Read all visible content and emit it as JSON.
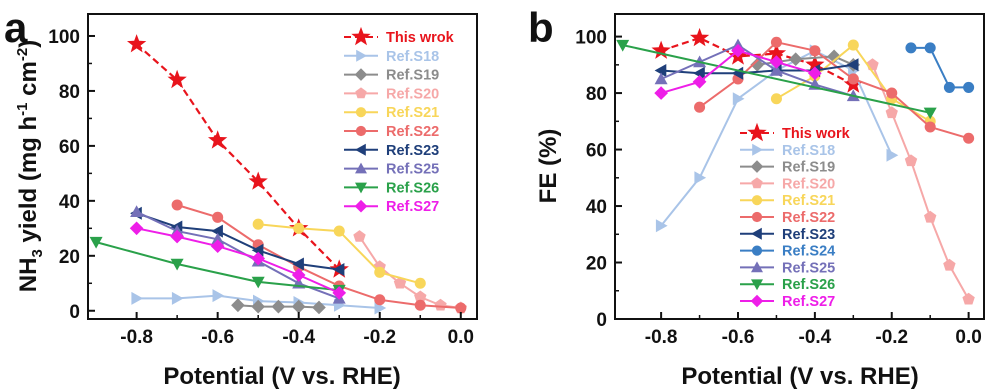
{
  "figure": {
    "panels": [
      "a",
      "b"
    ]
  },
  "chart_data": [
    {
      "panel": "a",
      "type": "line",
      "xlabel": "Potential (V vs. RHE)",
      "ylabel": "NH3 yield (mg h-1 cm-2)",
      "ylabel_parts": {
        "pre": "NH",
        "sub1": "3",
        "mid": " yield (mg h",
        "sup1": "-1",
        "mid2": " cm",
        "sup2": "-2",
        "post": ")"
      },
      "xlim": [
        -0.92,
        0.04
      ],
      "ylim": [
        -3,
        108
      ],
      "xticks": [
        -0.8,
        -0.6,
        -0.4,
        -0.2,
        0.0
      ],
      "xtick_labels": [
        "-0.8",
        "-0.6",
        "-0.4",
        "-0.2",
        "0.0"
      ],
      "yticks": [
        0,
        20,
        40,
        60,
        80,
        100
      ],
      "ytick_labels": [
        "0",
        "20",
        "40",
        "60",
        "80",
        "100"
      ],
      "legend": "top-right",
      "series": [
        {
          "name": "This wrok",
          "color": "#e8141c",
          "marker": "star",
          "dashed": true,
          "points": [
            [
              -0.8,
              97
            ],
            [
              -0.7,
              84
            ],
            [
              -0.6,
              62
            ],
            [
              -0.5,
              47
            ],
            [
              -0.4,
              30
            ],
            [
              -0.3,
              15
            ]
          ]
        },
        {
          "name": "Ref.S18",
          "color": "#a9c4e8",
          "marker": "triangle-right",
          "dashed": false,
          "points": [
            [
              -0.8,
              4.5
            ],
            [
              -0.7,
              4.5
            ],
            [
              -0.6,
              5.5
            ],
            [
              -0.5,
              3.5
            ],
            [
              -0.4,
              3
            ],
            [
              -0.3,
              2
            ],
            [
              -0.2,
              1
            ]
          ]
        },
        {
          "name": "Ref.S19",
          "color": "#8c8c8c",
          "marker": "diamond",
          "dashed": false,
          "points": [
            [
              -0.55,
              2
            ],
            [
              -0.5,
              1.5
            ],
            [
              -0.45,
              1.5
            ],
            [
              -0.4,
              1.5
            ],
            [
              -0.35,
              1.2
            ]
          ]
        },
        {
          "name": "Ref.S20",
          "color": "#f6a8a8",
          "marker": "pentagon",
          "dashed": false,
          "points": [
            [
              -0.25,
              27
            ],
            [
              -0.2,
              16
            ],
            [
              -0.15,
              10
            ],
            [
              -0.1,
              5
            ],
            [
              -0.05,
              2
            ],
            [
              0.0,
              1
            ]
          ]
        },
        {
          "name": "Ref.S21",
          "color": "#f8d65a",
          "marker": "circle",
          "dashed": false,
          "points": [
            [
              -0.5,
              31.5
            ],
            [
              -0.4,
              30
            ],
            [
              -0.3,
              29
            ],
            [
              -0.2,
              14
            ],
            [
              -0.1,
              10
            ]
          ]
        },
        {
          "name": "Ref.S22",
          "color": "#ec6b6b",
          "marker": "circle",
          "dashed": false,
          "points": [
            [
              -0.7,
              38.5
            ],
            [
              -0.6,
              34
            ],
            [
              -0.5,
              24
            ],
            [
              -0.4,
              16
            ],
            [
              -0.3,
              9
            ],
            [
              -0.2,
              4
            ],
            [
              -0.1,
              2
            ],
            [
              0.0,
              1
            ]
          ]
        },
        {
          "name": "Ref.S23",
          "color": "#1f3f7a",
          "marker": "triangle-left",
          "dashed": false,
          "points": [
            [
              -0.8,
              35.5
            ],
            [
              -0.7,
              30.5
            ],
            [
              -0.6,
              29
            ],
            [
              -0.5,
              22
            ],
            [
              -0.4,
              17
            ],
            [
              -0.3,
              15
            ]
          ]
        },
        {
          "name": "Ref.S25",
          "color": "#7470b8",
          "marker": "triangle-up",
          "dashed": false,
          "points": [
            [
              -0.8,
              36
            ],
            [
              -0.7,
              29
            ],
            [
              -0.6,
              26
            ],
            [
              -0.5,
              18
            ],
            [
              -0.4,
              10
            ],
            [
              -0.3,
              4.5
            ]
          ]
        },
        {
          "name": "Ref.S26",
          "color": "#2aa14a",
          "marker": "triangle-down",
          "dashed": false,
          "points": [
            [
              -0.9,
              25
            ],
            [
              -0.7,
              17
            ],
            [
              -0.5,
              10.5
            ],
            [
              -0.3,
              7.5
            ]
          ]
        },
        {
          "name": "Ref.S27",
          "color": "#ee1ee8",
          "marker": "diamond",
          "dashed": false,
          "points": [
            [
              -0.8,
              30
            ],
            [
              -0.7,
              27
            ],
            [
              -0.6,
              23.5
            ],
            [
              -0.5,
              19
            ],
            [
              -0.4,
              13
            ],
            [
              -0.3,
              6.5
            ]
          ]
        }
      ]
    },
    {
      "panel": "b",
      "type": "line",
      "xlabel": "Potential (V vs. RHE)",
      "ylabel": "FE (%)",
      "xlim": [
        -0.92,
        0.04
      ],
      "ylim": [
        0,
        108
      ],
      "xticks": [
        -0.8,
        -0.6,
        -0.4,
        -0.2,
        0.0
      ],
      "xtick_labels": [
        "-0.8",
        "-0.6",
        "-0.4",
        "-0.2",
        "0.0"
      ],
      "yticks": [
        0,
        20,
        40,
        60,
        80,
        100
      ],
      "ytick_labels": [
        "0",
        "20",
        "40",
        "60",
        "80",
        "100"
      ],
      "legend": "lower-center",
      "series": [
        {
          "name": "This work",
          "color": "#e8141c",
          "marker": "star",
          "dashed": true,
          "points": [
            [
              -0.8,
              95
            ],
            [
              -0.7,
              99.5
            ],
            [
              -0.6,
              93
            ],
            [
              -0.5,
              94
            ],
            [
              -0.4,
              90
            ],
            [
              -0.3,
              83
            ]
          ]
        },
        {
          "name": "Ref.S18",
          "color": "#a9c4e8",
          "marker": "triangle-right",
          "dashed": false,
          "points": [
            [
              -0.8,
              33
            ],
            [
              -0.7,
              50
            ],
            [
              -0.6,
              78
            ],
            [
              -0.5,
              88
            ],
            [
              -0.4,
              95
            ],
            [
              -0.3,
              88
            ],
            [
              -0.2,
              58
            ]
          ]
        },
        {
          "name": "Ref.S19",
          "color": "#8c8c8c",
          "marker": "diamond",
          "dashed": false,
          "points": [
            [
              -0.55,
              90
            ],
            [
              -0.45,
              92
            ],
            [
              -0.35,
              93
            ],
            [
              -0.3,
              90
            ]
          ]
        },
        {
          "name": "Ref.S20",
          "color": "#f6a8a8",
          "marker": "pentagon",
          "dashed": false,
          "points": [
            [
              -0.25,
              90
            ],
            [
              -0.2,
              73
            ],
            [
              -0.15,
              56
            ],
            [
              -0.1,
              36
            ],
            [
              -0.05,
              19
            ],
            [
              0.0,
              7
            ]
          ]
        },
        {
          "name": "Ref.S21",
          "color": "#f8d65a",
          "marker": "circle",
          "dashed": false,
          "points": [
            [
              -0.5,
              78
            ],
            [
              -0.4,
              86
            ],
            [
              -0.3,
              97
            ],
            [
              -0.2,
              78
            ],
            [
              -0.1,
              70
            ]
          ]
        },
        {
          "name": "Ref.S22",
          "color": "#ec6b6b",
          "marker": "circle",
          "dashed": false,
          "points": [
            [
              -0.7,
              75
            ],
            [
              -0.6,
              85
            ],
            [
              -0.5,
              98
            ],
            [
              -0.4,
              95
            ],
            [
              -0.3,
              85
            ],
            [
              -0.2,
              80
            ],
            [
              -0.1,
              68
            ],
            [
              0.0,
              64
            ]
          ]
        },
        {
          "name": "Ref.S23",
          "color": "#1f3f7a",
          "marker": "triangle-left",
          "dashed": false,
          "points": [
            [
              -0.8,
              88
            ],
            [
              -0.7,
              87
            ],
            [
              -0.6,
              87
            ],
            [
              -0.5,
              88
            ],
            [
              -0.4,
              88
            ],
            [
              -0.3,
              90
            ]
          ]
        },
        {
          "name": "Ref.S24",
          "color": "#3a7ec4",
          "marker": "circle",
          "dashed": false,
          "points": [
            [
              -0.15,
              96
            ],
            [
              -0.1,
              96
            ],
            [
              -0.05,
              82
            ],
            [
              0.0,
              82
            ]
          ]
        },
        {
          "name": "Ref.S25",
          "color": "#7470b8",
          "marker": "triangle-up",
          "dashed": false,
          "points": [
            [
              -0.8,
              85
            ],
            [
              -0.7,
              91
            ],
            [
              -0.6,
              97
            ],
            [
              -0.5,
              88
            ],
            [
              -0.4,
              83
            ],
            [
              -0.3,
              79
            ]
          ]
        },
        {
          "name": "Ref.S26",
          "color": "#2aa14a",
          "marker": "triangle-down",
          "dashed": false,
          "points": [
            [
              -0.9,
              97
            ],
            [
              -0.1,
              73
            ]
          ]
        },
        {
          "name": "Ref.S27",
          "color": "#ee1ee8",
          "marker": "diamond",
          "dashed": false,
          "points": [
            [
              -0.8,
              80
            ],
            [
              -0.7,
              84
            ],
            [
              -0.6,
              95
            ],
            [
              -0.5,
              91
            ],
            [
              -0.4,
              87
            ]
          ]
        }
      ]
    }
  ]
}
